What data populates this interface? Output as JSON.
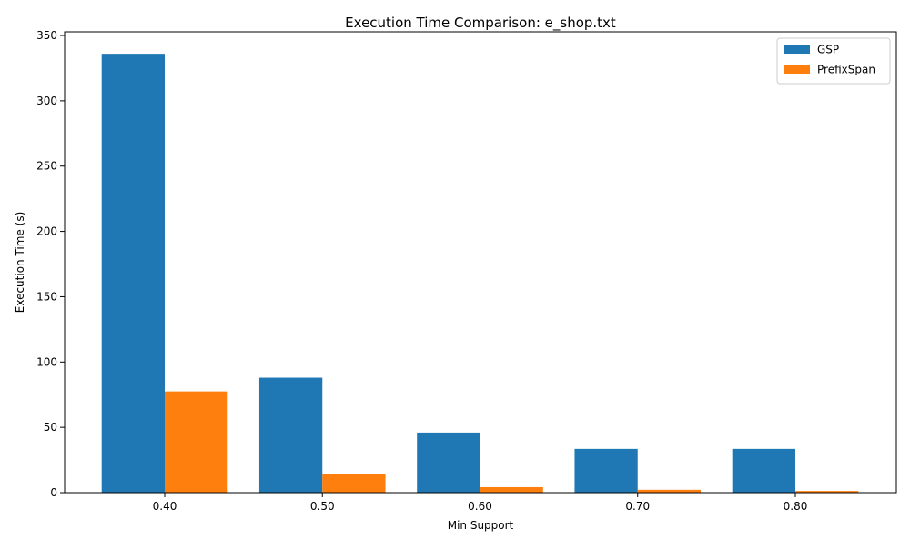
{
  "chart_data": {
    "type": "bar",
    "title": "Execution Time Comparison: e_shop.txt",
    "xlabel": "Min Support",
    "ylabel": "Execution Time (s)",
    "categories": [
      "0.40",
      "0.50",
      "0.60",
      "0.70",
      "0.80"
    ],
    "series": [
      {
        "name": "GSP",
        "color": "#1f77b4",
        "values": [
          336,
          88,
          46,
          33.5,
          33.5
        ]
      },
      {
        "name": "PrefixSpan",
        "color": "#ff7f0e",
        "values": [
          77.5,
          14.5,
          4.2,
          2.2,
          1.3
        ]
      }
    ],
    "ylim": [
      0,
      352.8
    ],
    "yticks": [
      "0",
      "50",
      "100",
      "150",
      "200",
      "250",
      "300",
      "350"
    ],
    "grid": false,
    "legend_position": "top-right"
  }
}
